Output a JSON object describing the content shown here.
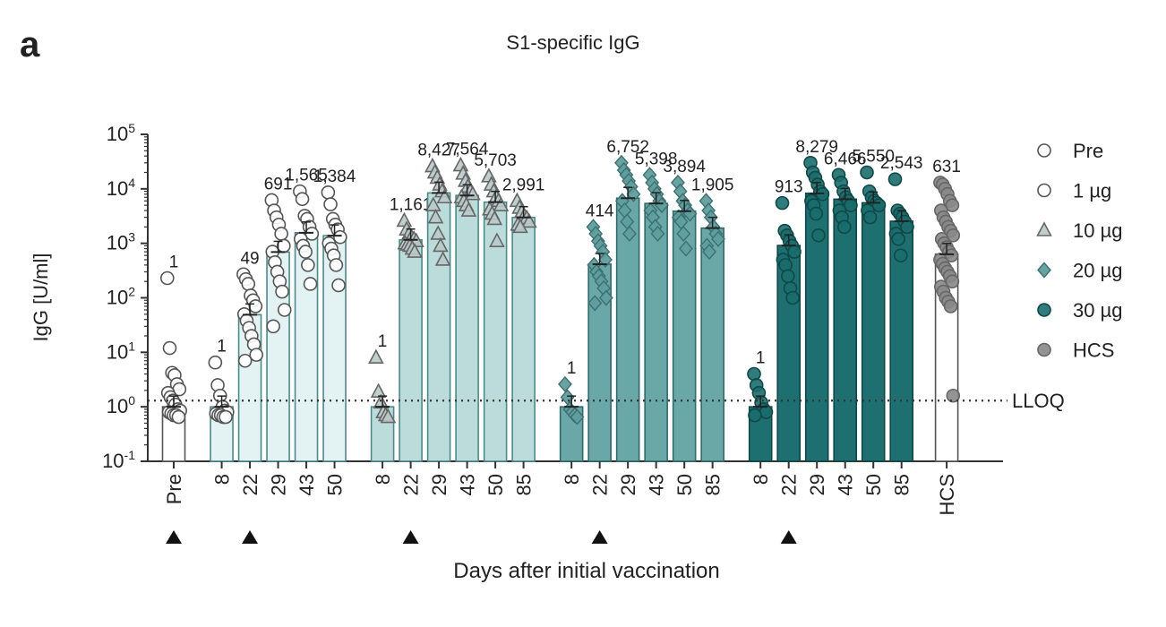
{
  "panel_label": "a",
  "chart_data": {
    "type": "bar",
    "title": "S1-specific IgG",
    "xlabel": "Days after initial vaccination",
    "ylabel": "IgG [U/ml]",
    "yscale": "log",
    "ylim": [
      0.1,
      100000
    ],
    "y_ticks": [
      {
        "value": 0.1,
        "base": "10",
        "exp": "-1"
      },
      {
        "value": 1,
        "base": "10",
        "exp": "0"
      },
      {
        "value": 10,
        "base": "10",
        "exp": "1"
      },
      {
        "value": 100,
        "base": "10",
        "exp": "2"
      },
      {
        "value": 1000,
        "base": "10",
        "exp": "3"
      },
      {
        "value": 10000,
        "base": "10",
        "exp": "4"
      },
      {
        "value": 100000,
        "base": "10",
        "exp": "5"
      }
    ],
    "reference_line": {
      "label": "LLOQ",
      "value": 1.3
    },
    "legend": {
      "placement": "right",
      "entries": [
        {
          "name": "Pre",
          "marker": "circle",
          "fill": "#ffffff",
          "stroke": "#555555"
        },
        {
          "name": "1 µg",
          "marker": "circle",
          "fill": "#ffffff",
          "stroke": "#555555"
        },
        {
          "name": "10 µg",
          "marker": "triangle",
          "fill": "#b9c9c9",
          "stroke": "#666666"
        },
        {
          "name": "20 µg",
          "marker": "diamond",
          "fill": "#5f9e9e",
          "stroke": "#3d7070"
        },
        {
          "name": "30 µg",
          "marker": "circle",
          "fill": "#1a6d6d",
          "stroke": "#104848"
        },
        {
          "name": "HCS",
          "marker": "circle",
          "fill": "#888888",
          "stroke": "#666666"
        }
      ]
    },
    "group_spacing_units": [
      0,
      1.7,
      1.7,
      1.7,
      1.7,
      1.6
    ],
    "groups": [
      {
        "name": "Pre",
        "bar_fill": "#ffffff",
        "bar_stroke": "#555555",
        "marker": "circle",
        "marker_fill": "#ffffff",
        "marker_stroke": "#555555",
        "triangles_under": [
          0
        ],
        "bars": [
          {
            "x": "Pre",
            "value": 1,
            "label": "1",
            "points": [
              230,
              12,
              4.2,
              3.8,
              2.6,
              2.1,
              1.8,
              1.5,
              1.3,
              1.1,
              0.9,
              0.85,
              0.8,
              0.75,
              0.7,
              0.7,
              0.65
            ]
          }
        ]
      },
      {
        "name": "1 µg",
        "bar_fill": "#e3f3f3",
        "bar_stroke": "#4b8a8a",
        "marker": "circle",
        "marker_fill": "#ffffff",
        "marker_stroke": "#555555",
        "triangles_under": [
          1
        ],
        "bars": [
          {
            "x": "8",
            "value": 1,
            "label": "1",
            "points": [
              6.5,
              2.5,
              1.6,
              1.0,
              0.85,
              0.8,
              0.75,
              0.7,
              0.7,
              0.65,
              0.65
            ]
          },
          {
            "x": "22",
            "value": 49,
            "label": "49",
            "points": [
              270,
              220,
              180,
              110,
              90,
              70,
              50,
              38,
              28,
              20,
              14,
              9,
              7
            ]
          },
          {
            "x": "29",
            "value": 691,
            "label": "691",
            "points": [
              6200,
              4000,
              3000,
              2200,
              1500,
              900,
              700,
              450,
              300,
              200,
              130,
              60,
              30
            ]
          },
          {
            "x": "43",
            "value": 1565,
            "label": "1,565",
            "points": [
              9000,
              6500,
              3200,
              2800,
              2000,
              1500,
              1200,
              900,
              700,
              400,
              180
            ]
          },
          {
            "x": "50",
            "value": 1384,
            "label": "1,384",
            "points": [
              8600,
              5200,
              2800,
              2200,
              1800,
              1300,
              1000,
              800,
              600,
              400,
              170
            ]
          }
        ]
      },
      {
        "name": "10 µg",
        "bar_fill": "#bcdcdc",
        "bar_stroke": "#4b8a8a",
        "marker": "triangle",
        "marker_fill": "#b9c9c9",
        "marker_stroke": "#666666",
        "triangles_under": [
          1
        ],
        "bars": [
          {
            "x": "8",
            "value": 1,
            "label": "1",
            "points": [
              8,
              1.9,
              1.2,
              0.8,
              0.7,
              0.65
            ]
          },
          {
            "x": "22",
            "value": 1161,
            "label": "1,161",
            "points": [
              2600,
              1800,
              1500,
              1300,
              1200,
              1100,
              1000,
              950,
              900,
              800,
              700
            ]
          },
          {
            "x": "29",
            "value": 8427,
            "label": "8,427",
            "points": [
              26000,
              20000,
              16000,
              12000,
              9000,
              7000,
              5000,
              3000,
              1500,
              900,
              500
            ]
          },
          {
            "x": "43",
            "value": 7564,
            "label": "7,564",
            "points": [
              27000,
              19000,
              14000,
              11000,
              9000,
              8000,
              7000,
              6000,
              5000,
              4000
            ]
          },
          {
            "x": "50",
            "value": 5703,
            "label": "5,703",
            "points": [
              17000,
              12000,
              9000,
              7000,
              6000,
              5000,
              4200,
              3500,
              2800,
              1100
            ]
          },
          {
            "x": "85",
            "value": 2991,
            "label": "2,991",
            "points": [
              6000,
              4500,
              3800,
              3200,
              2900,
              2500,
              2200,
              2000
            ]
          }
        ]
      },
      {
        "name": "20 µg",
        "bar_fill": "#6aa7a7",
        "bar_stroke": "#2f6b6b",
        "marker": "diamond",
        "marker_fill": "#5f9e9e",
        "marker_stroke": "#3d7070",
        "triangles_under": [
          1
        ],
        "bars": [
          {
            "x": "8",
            "value": 1,
            "label": "1",
            "points": [
              2.6,
              1.5,
              0.9,
              0.8,
              0.7,
              0.65
            ]
          },
          {
            "x": "22",
            "value": 414,
            "label": "414",
            "points": [
              2000,
              1500,
              1100,
              900,
              700,
              500,
              400,
              300,
              250,
              200,
              150,
              100,
              80
            ]
          },
          {
            "x": "29",
            "value": 6752,
            "label": "6,752",
            "points": [
              30000,
              22000,
              18000,
              14000,
              11000,
              8000,
              6000,
              4000,
              2500,
              1500
            ]
          },
          {
            "x": "43",
            "value": 5398,
            "label": "5,398",
            "points": [
              18000,
              13000,
              10000,
              8000,
              6000,
              5000,
              4000,
              3000,
              2000,
              1500
            ]
          },
          {
            "x": "50",
            "value": 3894,
            "label": "3,894",
            "points": [
              13000,
              9000,
              6000,
              5000,
              4000,
              3500,
              3000,
              2500,
              1500,
              800
            ]
          },
          {
            "x": "85",
            "value": 1905,
            "label": "1,905",
            "points": [
              6000,
              4000,
              3000,
              2000,
              1500,
              1200,
              900,
              700
            ]
          }
        ]
      },
      {
        "name": "30 µg",
        "bar_fill": "#1e7070",
        "bar_stroke": "#0f4747",
        "marker": "circle",
        "marker_fill": "#1a6d6d",
        "marker_stroke": "#104848",
        "triangles_under": [
          1
        ],
        "bars": [
          {
            "x": "8",
            "value": 1,
            "label": "1",
            "points": [
              4,
              2.5,
              1.8,
              1.2,
              0.9,
              0.8,
              0.7
            ]
          },
          {
            "x": "22",
            "value": 913,
            "label": "913",
            "points": [
              5500,
              1700,
              1400,
              1100,
              900,
              700,
              500,
              400,
              250,
              150,
              100
            ]
          },
          {
            "x": "29",
            "value": 8279,
            "label": "8,279",
            "points": [
              30000,
              20000,
              16000,
              12000,
              9000,
              8000,
              6000,
              5000,
              3500,
              1400
            ]
          },
          {
            "x": "43",
            "value": 6466,
            "label": "6,466",
            "points": [
              18000,
              13000,
              9000,
              7000,
              6000,
              5000,
              4000,
              3000,
              2000
            ]
          },
          {
            "x": "50",
            "value": 5550,
            "label": "5,550",
            "points": [
              20000,
              9000,
              7000,
              6000,
              5500,
              5000,
              4000,
              3000
            ]
          },
          {
            "x": "85",
            "value": 2543,
            "label": "2,543",
            "points": [
              15000,
              4000,
              3500,
              3000,
              2500,
              2000,
              1500,
              1200,
              600
            ]
          }
        ]
      },
      {
        "name": "HCS",
        "bar_fill": "#ffffff",
        "bar_stroke": "#555555",
        "marker": "circle",
        "marker_fill": "#888888",
        "marker_stroke": "#666666",
        "triangles_under": [],
        "bars": [
          {
            "x": "HCS",
            "value": 631,
            "label": "631",
            "points": [
              13000,
              12000,
              10000,
              8000,
              6000,
              5000,
              4000,
              3000,
              2500,
              2000,
              1700,
              1400,
              1200,
              1000,
              850,
              700,
              600,
              500,
              420,
              350,
              300,
              250,
              200,
              160,
              130,
              100,
              85,
              70,
              1.6
            ]
          }
        ]
      }
    ]
  }
}
